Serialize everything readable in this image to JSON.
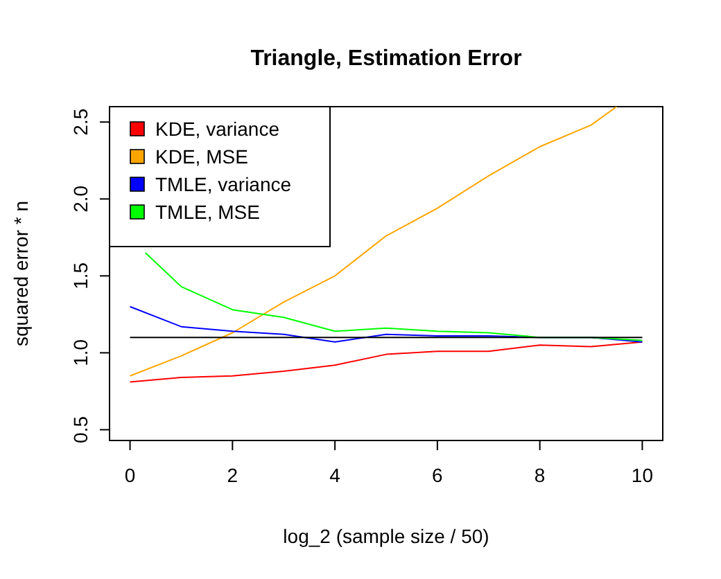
{
  "chart_data": {
    "type": "line",
    "title": "Triangle, Estimation Error",
    "xlabel": "log_2 (sample size / 50)",
    "ylabel": "squared error * n",
    "x": [
      0,
      1,
      2,
      3,
      4,
      5,
      6,
      7,
      8,
      9,
      10
    ],
    "series": [
      {
        "name": "KDE, variance",
        "color": "#ff0000",
        "values": [
          0.81,
          0.84,
          0.85,
          0.88,
          0.92,
          0.99,
          1.01,
          1.01,
          1.05,
          1.04,
          1.07
        ]
      },
      {
        "name": "KDE, MSE",
        "color": "#ffa500",
        "x": [
          0,
          1,
          2,
          3,
          4,
          5,
          6,
          7,
          8,
          9,
          9.5
        ],
        "values": [
          0.85,
          0.98,
          1.13,
          1.33,
          1.5,
          1.76,
          1.94,
          2.15,
          2.34,
          2.48,
          2.6
        ]
      },
      {
        "name": "TMLE, variance",
        "color": "#0000ff",
        "values": [
          1.3,
          1.17,
          1.14,
          1.12,
          1.07,
          1.12,
          1.11,
          1.11,
          1.1,
          1.1,
          1.07
        ]
      },
      {
        "name": "TMLE, MSE",
        "color": "#00ff00",
        "x": [
          0.3,
          1,
          2,
          3,
          4,
          5,
          6,
          7,
          8,
          9,
          10
        ],
        "values": [
          1.65,
          1.43,
          1.28,
          1.23,
          1.14,
          1.16,
          1.14,
          1.13,
          1.1,
          1.1,
          1.08
        ]
      },
      {
        "color": "#000000",
        "x": [
          0,
          10
        ],
        "values": [
          1.1,
          1.1
        ]
      }
    ],
    "xlim": [
      -0.4,
      10.4
    ],
    "ylim": [
      0.43,
      2.6
    ],
    "xticks": [
      0,
      2,
      4,
      6,
      8,
      10
    ],
    "yticks": [
      0.5,
      {
        "value": 1,
        "label": "1.0"
      },
      1.5,
      {
        "value": 2,
        "label": "2.0"
      },
      2.5
    ],
    "legend": "top left",
    "grid": false,
    "marker": "none",
    "line_style": "solid"
  }
}
